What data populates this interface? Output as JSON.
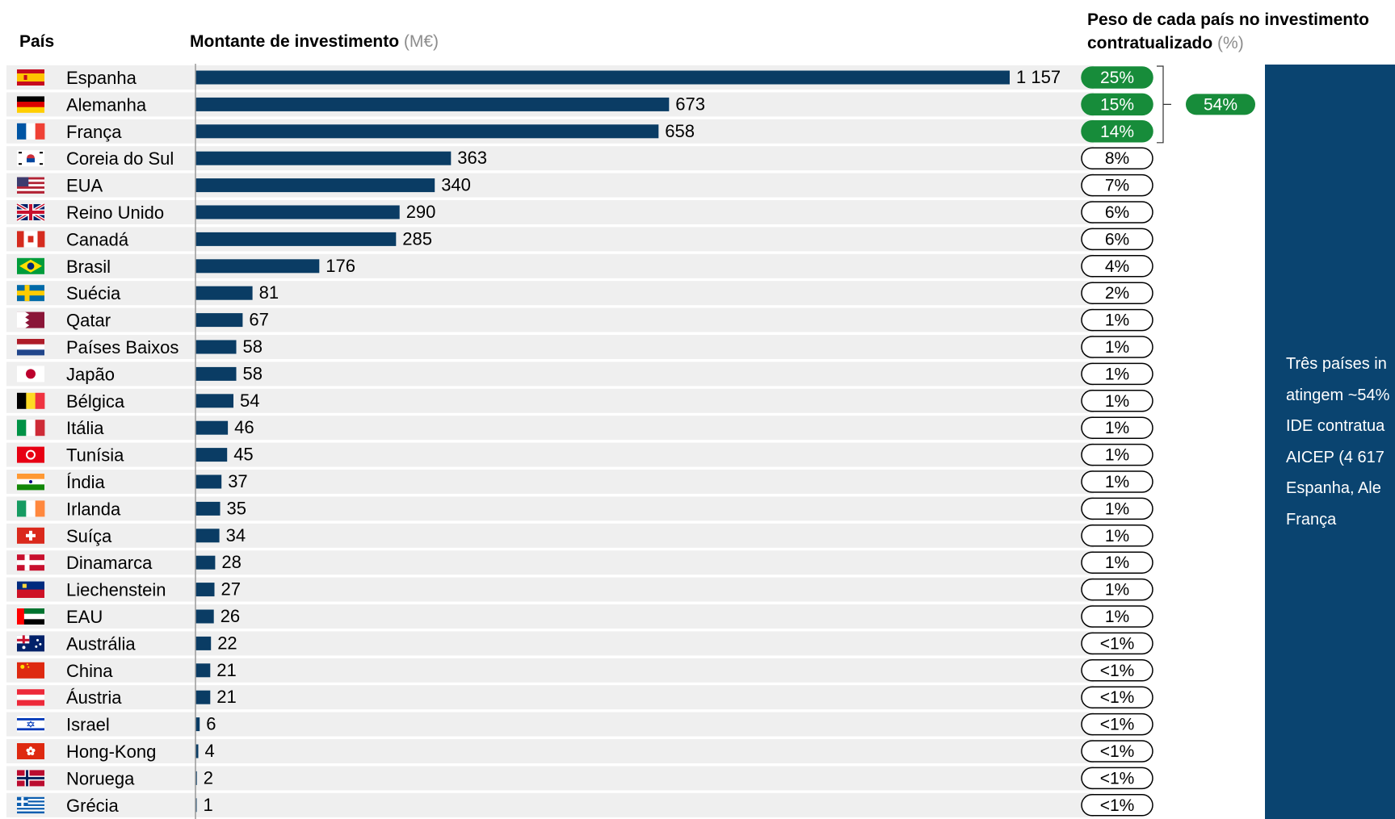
{
  "headers": {
    "country": "País",
    "amount": "Montante de investimento",
    "amount_unit": "(M€)",
    "share_line1": "Peso de cada país no investimento",
    "share_line2": "contratualizado",
    "share_unit": "(%)"
  },
  "chart_data": {
    "type": "bar",
    "orientation": "horizontal",
    "title": "",
    "xlabel": "Montante de investimento (M€)",
    "ylabel": "País",
    "xlim": [
      0,
      1157
    ],
    "grid": false,
    "categories": [
      "Espanha",
      "Alemanha",
      "França",
      "Coreia do Sul",
      "EUA",
      "Reino Unido",
      "Canadá",
      "Brasil",
      "Suécia",
      "Qatar",
      "Países Baixos",
      "Japão",
      "Bélgica",
      "Itália",
      "Tunísia",
      "Índia",
      "Irlanda",
      "Suíça",
      "Dinamarca",
      "Liechenstein",
      "EAU",
      "Austrália",
      "China",
      "Áustria",
      "Israel",
      "Hong-Kong",
      "Noruega",
      "Grécia"
    ],
    "values": [
      1157,
      673,
      658,
      363,
      340,
      290,
      285,
      176,
      81,
      67,
      58,
      58,
      54,
      46,
      45,
      37,
      35,
      34,
      28,
      27,
      26,
      22,
      21,
      21,
      6,
      4,
      2,
      1
    ],
    "value_labels": [
      "1 157",
      "673",
      "658",
      "363",
      "340",
      "290",
      "285",
      "176",
      "81",
      "67",
      "58",
      "58",
      "54",
      "46",
      "45",
      "37",
      "35",
      "34",
      "28",
      "27",
      "26",
      "22",
      "21",
      "21",
      "6",
      "4",
      "2",
      "1"
    ],
    "share_labels": [
      "25%",
      "15%",
      "14%",
      "8%",
      "7%",
      "6%",
      "6%",
      "4%",
      "2%",
      "1%",
      "1%",
      "1%",
      "1%",
      "1%",
      "1%",
      "1%",
      "1%",
      "1%",
      "1%",
      "1%",
      "1%",
      "<1%",
      "<1%",
      "<1%",
      "<1%",
      "<1%",
      "<1%",
      "<1%"
    ],
    "highlight_count": 3,
    "combined_share_label": "54%"
  },
  "flags": [
    "spain-flag-icon",
    "germany-flag-icon",
    "france-flag-icon",
    "south-korea-flag-icon",
    "usa-flag-icon",
    "uk-flag-icon",
    "canada-flag-icon",
    "brazil-flag-icon",
    "sweden-flag-icon",
    "qatar-flag-icon",
    "netherlands-flag-icon",
    "japan-flag-icon",
    "belgium-flag-icon",
    "italy-flag-icon",
    "tunisia-flag-icon",
    "india-flag-icon",
    "ireland-flag-icon",
    "switzerland-flag-icon",
    "denmark-flag-icon",
    "liechtenstein-flag-icon",
    "uae-flag-icon",
    "australia-flag-icon",
    "china-flag-icon",
    "austria-flag-icon",
    "israel-flag-icon",
    "hong-kong-flag-icon",
    "norway-flag-icon",
    "greece-flag-icon"
  ],
  "side_panel": {
    "text": "Três países in\natingem ~54%\nIDE contratua\nAICEP (4 617\nEspanha, Ale\nFrança"
  },
  "colors": {
    "bar": "#0a3c64",
    "highlight_pill": "#178c3a",
    "panel": "#0a4470",
    "row_background": "#efefef"
  }
}
